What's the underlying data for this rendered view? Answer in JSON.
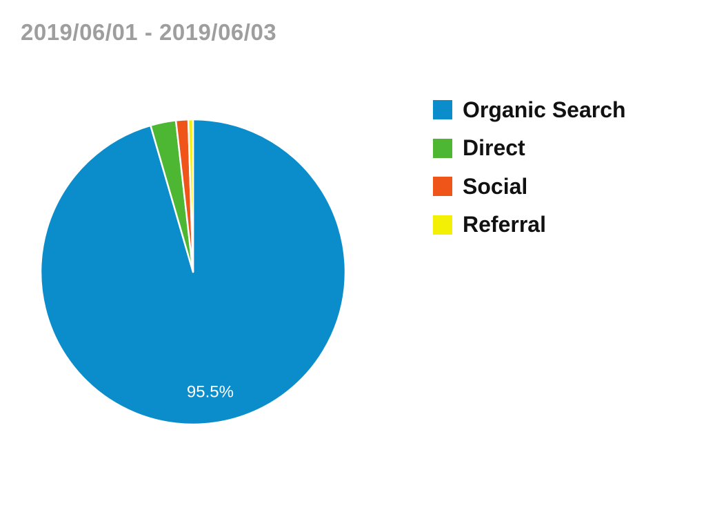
{
  "header": {
    "date_range": "2019/06/01 - 2019/06/03"
  },
  "chart_data": {
    "type": "pie",
    "title": "",
    "categories": [
      "Organic Search",
      "Direct",
      "Social",
      "Referral"
    ],
    "values": [
      95.5,
      2.7,
      1.3,
      0.5
    ],
    "colors": [
      "#0b8dcb",
      "#4db733",
      "#ef5418",
      "#f3ef05"
    ],
    "data_labels": [
      "95.5%",
      "",
      "",
      ""
    ],
    "legend_position": "right"
  }
}
